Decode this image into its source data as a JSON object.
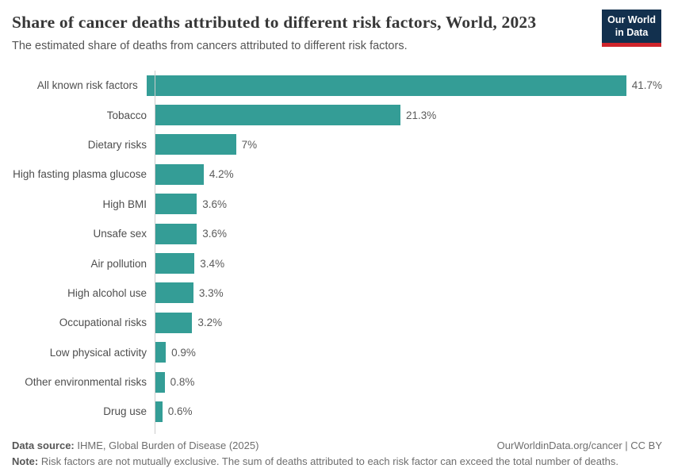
{
  "header": {
    "title": "Share of cancer deaths attributed to different risk factors, World, 2023",
    "subtitle": "The estimated share of deaths from cancers attributed to different risk factors.",
    "logo": {
      "line1": "Our World",
      "line2": "in Data"
    }
  },
  "chart_data": {
    "type": "bar",
    "orientation": "horizontal",
    "title": "Share of cancer deaths attributed to different risk factors, World, 2023",
    "xlabel": "",
    "ylabel": "",
    "grid": false,
    "legend": false,
    "xlim": [
      0,
      43
    ],
    "categories": [
      "All known risk factors",
      "Tobacco",
      "Dietary risks",
      "High fasting plasma glucose",
      "High BMI",
      "Unsafe sex",
      "Air pollution",
      "High alcohol use",
      "Occupational risks",
      "Low physical activity",
      "Other environmental risks",
      "Drug use"
    ],
    "values": [
      41.7,
      21.3,
      7,
      4.2,
      3.6,
      3.6,
      3.4,
      3.3,
      3.2,
      0.9,
      0.8,
      0.6
    ],
    "value_labels": [
      "41.7%",
      "21.3%",
      "7%",
      "4.2%",
      "3.6%",
      "3.6%",
      "3.4%",
      "3.3%",
      "3.2%",
      "0.9%",
      "0.8%",
      "0.6%"
    ]
  },
  "footer": {
    "source_label": "Data source:",
    "source_text": " IHME, Global Burden of Disease (2025)",
    "attribution": "OurWorldinData.org/cancer | CC BY",
    "note_label": "Note:",
    "note_text": " Risk factors are not mutually exclusive. The sum of deaths attributed to each risk factor can exceed the total number of deaths."
  },
  "colors": {
    "bar": "#349d96",
    "logo_bg": "#12304e",
    "logo_stripe": "#cf242b",
    "axis_line": "#cccccc",
    "title_text": "#373737",
    "subtitle_text": "#555555",
    "label_text": "#4e4e4e",
    "value_text": "#5b5b5b",
    "footer_text": "#6e6e6e",
    "footer_bold_text": "#565656"
  }
}
